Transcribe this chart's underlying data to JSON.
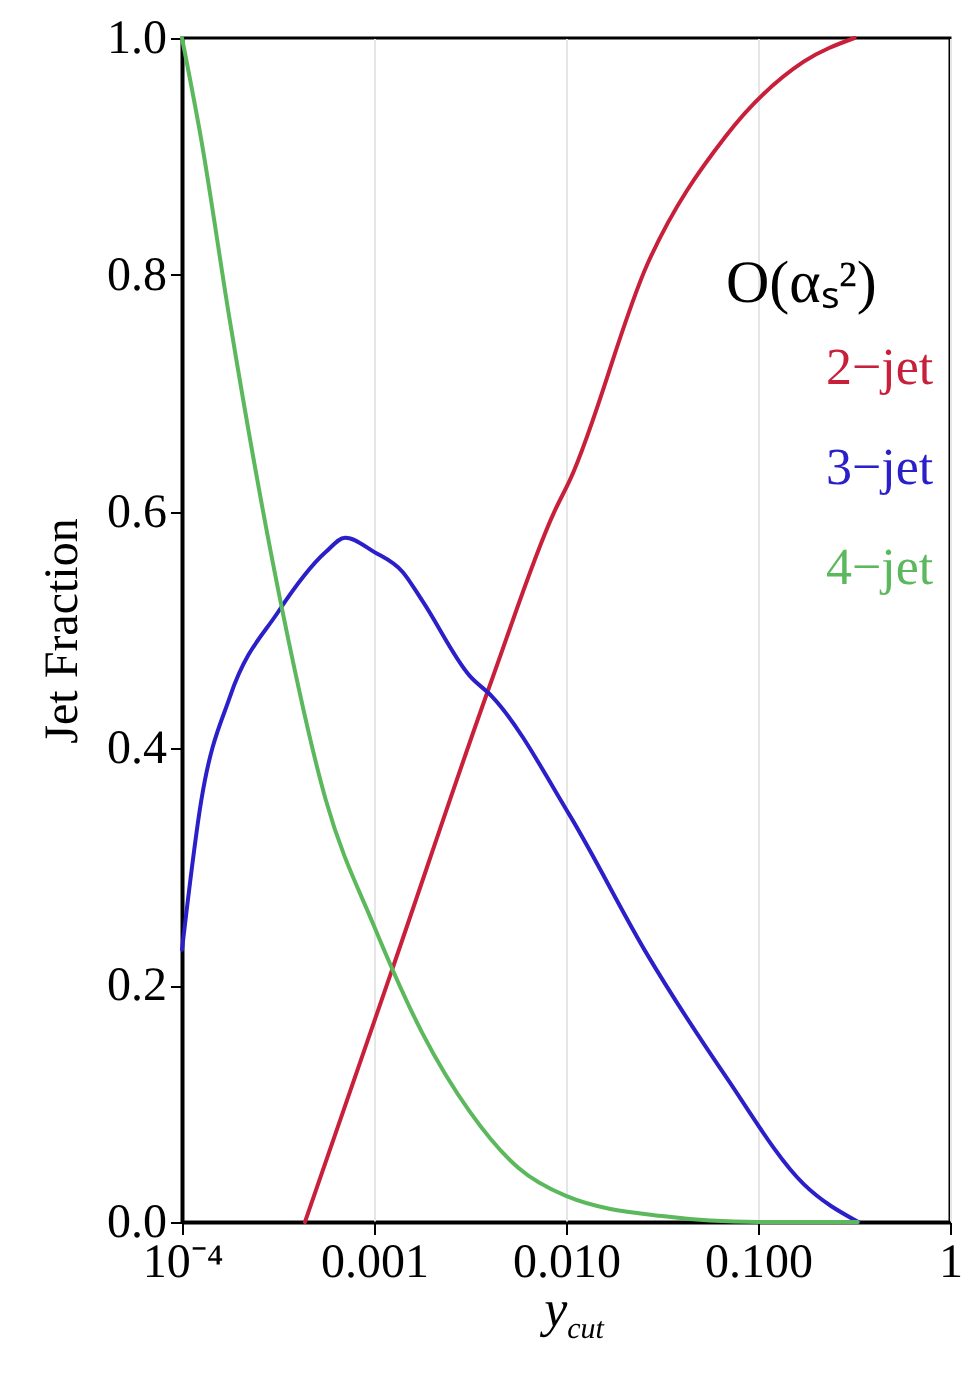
{
  "chart_data": {
    "type": "line",
    "xlabel": "y$_{cut}$",
    "ylabel": "Jet Fraction",
    "legend_title": "O(αₛ²)",
    "legend": "right",
    "log": "x",
    "grid": "x",
    "line_style": "solid",
    "xlim": [
      0.0001,
      1
    ],
    "xticks": [
      {
        "value": 0.0001,
        "label": "10⁻⁴"
      },
      0.001,
      {
        "value": 0.01,
        "label": "0.010"
      },
      {
        "value": 0.1,
        "label": "0.100"
      },
      1
    ],
    "ylim": [
      0,
      1
    ],
    "yticks": [
      {
        "value": 0,
        "label": "0.0"
      },
      {
        "value": 0.2,
        "label": "0.2"
      },
      {
        "value": 0.4,
        "label": "0.4"
      },
      {
        "value": 0.6,
        "label": "0.6"
      },
      {
        "value": 0.8,
        "label": "0.8"
      },
      {
        "value": 1,
        "label": "1.0"
      }
    ],
    "series": [
      {
        "name": "2−jet",
        "color": "#c8203a",
        "x": [
          0.000437,
          0.00123,
          0.00411,
          0.0087,
          0.0105,
          0.0267,
          0.0679,
          0.173,
          0.318
        ],
        "values": [
          0,
          0.211,
          0.458,
          0.6,
          0.627,
          0.81,
          0.917,
          0.98,
          1.0
        ]
      },
      {
        "name": "3−jet",
        "color": "#2a1fc8",
        "x": [
          0.0001,
          0.000126,
          0.000178,
          0.000316,
          0.000562,
          0.000708,
          0.001,
          0.00141,
          0.00178,
          0.00316,
          0.00411,
          0.0105,
          0.0267,
          0.0679,
          0.173,
          0.333
        ],
        "values": [
          0.23,
          0.356,
          0.444,
          0.515,
          0.566,
          0.578,
          0.566,
          0.549,
          0.525,
          0.461,
          0.444,
          0.343,
          0.225,
          0.123,
          0.032,
          0.0
        ]
      },
      {
        "name": "4−jet",
        "color": "#5cb85c",
        "x": [
          0.0001,
          0.000126,
          0.000178,
          0.000316,
          0.000562,
          0.001,
          0.00178,
          0.00316,
          0.00562,
          0.01,
          0.0316,
          0.1,
          0.33
        ],
        "values": [
          1.0,
          0.914,
          0.76,
          0.535,
          0.356,
          0.25,
          0.16,
          0.093,
          0.046,
          0.022,
          0.005,
          0.0,
          0.0
        ]
      }
    ]
  }
}
